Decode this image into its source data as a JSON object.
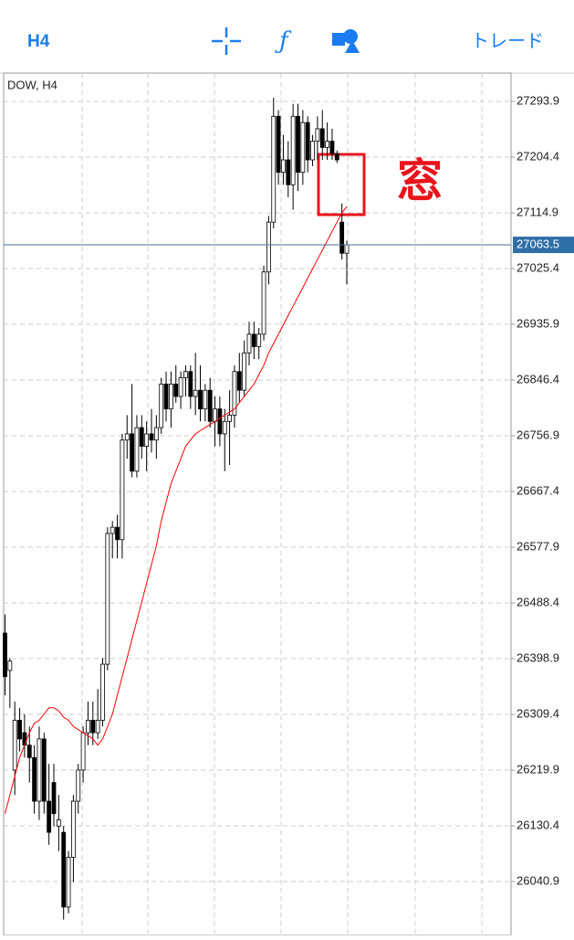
{
  "toolbar": {
    "timeframe": "H4",
    "trade": "トレード"
  },
  "chart_data": {
    "type": "candlestick",
    "title": "DOW, H4",
    "ylim": [
      25954.4,
      27339.4
    ],
    "yticks": [
      27293.9,
      27204.4,
      27114.9,
      27025.4,
      26935.9,
      26846.4,
      26756.9,
      26667.4,
      26577.9,
      26488.4,
      26398.9,
      26309.4,
      26219.9,
      26130.4,
      26040.9
    ],
    "grid": true,
    "candles": [
      [
        26440,
        26470,
        26340,
        26370
      ],
      [
        26380,
        26400,
        26320,
        26395
      ],
      [
        26220,
        26330,
        26180,
        26300
      ],
      [
        26300,
        26320,
        26250,
        26270
      ],
      [
        26280,
        26310,
        26240,
        26260
      ],
      [
        26260,
        26290,
        26200,
        26240
      ],
      [
        26240,
        26260,
        26150,
        26170
      ],
      [
        26170,
        26290,
        26140,
        26270
      ],
      [
        26270,
        26280,
        26150,
        26170
      ],
      [
        26170,
        26230,
        26100,
        26120
      ],
      [
        26200,
        26230,
        26130,
        26150
      ],
      [
        26130,
        26180,
        26090,
        26140
      ],
      [
        26120,
        26130,
        25980,
        26000
      ],
      [
        26000,
        26090,
        25990,
        26080
      ],
      [
        26080,
        26180,
        26040,
        26170
      ],
      [
        26170,
        26230,
        26150,
        26220
      ],
      [
        26220,
        26290,
        26200,
        26280
      ],
      [
        26280,
        26330,
        26260,
        26300
      ],
      [
        26300,
        26330,
        26260,
        26280
      ],
      [
        26280,
        26350,
        26270,
        26300
      ],
      [
        26300,
        26400,
        26290,
        26390
      ],
      [
        26390,
        26610,
        26380,
        26600
      ],
      [
        26600,
        26620,
        26560,
        26610
      ],
      [
        26610,
        26630,
        26560,
        26590
      ],
      [
        26590,
        26760,
        26560,
        26750
      ],
      [
        26750,
        26790,
        26720,
        26760
      ],
      [
        26760,
        26840,
        26690,
        26700
      ],
      [
        26700,
        26790,
        26690,
        26770
      ],
      [
        26770,
        26790,
        26720,
        26740
      ],
      [
        26740,
        26780,
        26700,
        26760
      ],
      [
        26760,
        26800,
        26730,
        26750
      ],
      [
        26750,
        26790,
        26720,
        26770
      ],
      [
        26770,
        26850,
        26760,
        26840
      ],
      [
        26840,
        26860,
        26780,
        26800
      ],
      [
        26800,
        26860,
        26770,
        26840
      ],
      [
        26840,
        26870,
        26810,
        26820
      ],
      [
        26820,
        26860,
        26800,
        26850
      ],
      [
        26850,
        26870,
        26820,
        26860
      ],
      [
        26860,
        26870,
        26800,
        26820
      ],
      [
        26820,
        26890,
        26790,
        26830
      ],
      [
        26830,
        26870,
        26780,
        26800
      ],
      [
        26800,
        26840,
        26780,
        26830
      ],
      [
        26830,
        26850,
        26770,
        26780
      ],
      [
        26780,
        26820,
        26740,
        26800
      ],
      [
        26800,
        26820,
        26740,
        26760
      ],
      [
        26760,
        26800,
        26700,
        26780
      ],
      [
        26780,
        26830,
        26710,
        26790
      ],
      [
        26790,
        26870,
        26770,
        26860
      ],
      [
        26860,
        26890,
        26810,
        26830
      ],
      [
        26830,
        26910,
        26820,
        26890
      ],
      [
        26890,
        26940,
        26870,
        26920
      ],
      [
        26920,
        26940,
        26880,
        26900
      ],
      [
        26900,
        26930,
        26880,
        26920
      ],
      [
        26920,
        27030,
        26910,
        27020
      ],
      [
        27020,
        27110,
        27000,
        27100
      ],
      [
        27100,
        27300,
        27090,
        27270
      ],
      [
        27270,
        27280,
        27160,
        27180
      ],
      [
        27180,
        27240,
        27160,
        27200
      ],
      [
        27200,
        27230,
        27140,
        27160
      ],
      [
        27160,
        27290,
        27120,
        27270
      ],
      [
        27270,
        27290,
        27150,
        27180
      ],
      [
        27180,
        27280,
        27160,
        27260
      ],
      [
        27260,
        27270,
        27180,
        27200
      ],
      [
        27200,
        27240,
        27190,
        27230
      ],
      [
        27230,
        27270,
        27200,
        27250
      ],
      [
        27250,
        27280,
        27200,
        27220
      ],
      [
        27220,
        27260,
        27200,
        27230
      ],
      [
        27230,
        27250,
        27200,
        27210
      ],
      [
        27210,
        27215,
        27195,
        27200
      ],
      [
        27100,
        27130,
        27040,
        27050
      ],
      [
        27050,
        27070,
        27000,
        27063.5
      ]
    ],
    "ma": [
      26150,
      26180,
      26210,
      26240,
      26260,
      26280,
      26295,
      26300,
      26310,
      26320,
      26320,
      26315,
      26305,
      26300,
      26290,
      26285,
      26280,
      26275,
      26270,
      26260,
      26270,
      26290,
      26310,
      26340,
      26370,
      26400,
      26430,
      26460,
      26490,
      26520,
      26550,
      26580,
      26620,
      26650,
      26680,
      26700,
      26720,
      26740,
      26750,
      26760,
      26765,
      26770,
      26775,
      26780,
      26785,
      26790,
      26795,
      26800,
      26810,
      26820,
      26830,
      26840,
      26855,
      26870,
      26890,
      26905,
      26920,
      26935,
      26950,
      26965,
      26980,
      26995,
      27010,
      27025,
      27040,
      27055,
      27070,
      27085,
      27100,
      27115,
      27125
    ],
    "ma_color": "#ff0000",
    "current_price": 27063.5,
    "annotation": "窓"
  }
}
